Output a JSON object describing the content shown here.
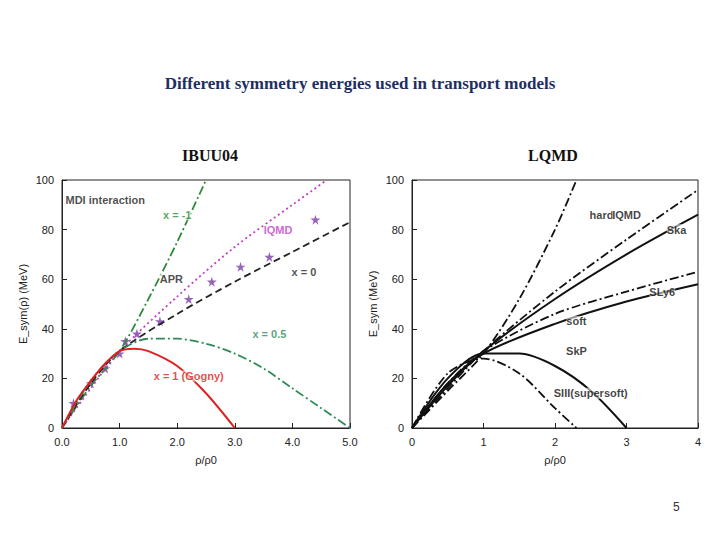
{
  "slide": {
    "title": "Different symmetry energies used in transport models",
    "page": "5"
  },
  "chart_data": [
    {
      "type": "line",
      "title": "IBUU04",
      "x_label": "ρ/ρ0",
      "y_label": "E_sym(ρ) (MeV)",
      "xlim": [
        0,
        5
      ],
      "xticks": [
        {
          "value": 0,
          "label": "0.0"
        },
        {
          "value": 1,
          "label": "1.0"
        },
        {
          "value": 2,
          "label": "2.0"
        },
        {
          "value": 3,
          "label": "3.0"
        },
        {
          "value": 4,
          "label": "4.0"
        },
        {
          "value": 5,
          "label": "5.0"
        }
      ],
      "ylim": [
        0,
        100
      ],
      "yticks": [
        0,
        20,
        40,
        60,
        80,
        100
      ],
      "grid": false,
      "series": [
        {
          "name": "x = -1",
          "color": "#2e8b3a",
          "line_style": "dashdot",
          "x": [
            0,
            0.5,
            1.0,
            1.5,
            2.0,
            2.5
          ],
          "values": [
            0,
            17,
            31,
            52,
            75,
            100
          ]
        },
        {
          "name": "IQMD",
          "color": "#c040c8",
          "line_style": "dotted",
          "x": [
            0,
            0.5,
            1.0,
            2.0,
            3.0,
            4.0,
            4.6
          ],
          "values": [
            0,
            16,
            31,
            53,
            73,
            90,
            100
          ]
        },
        {
          "name": "x = 0",
          "color": "#222222",
          "line_style": "dashed",
          "x": [
            0,
            0.5,
            1.0,
            2.0,
            3.0,
            4.0,
            5.0
          ],
          "values": [
            0,
            18,
            31,
            46,
            59,
            71,
            83
          ]
        },
        {
          "name": "x = 0.5",
          "color": "#2e8b57",
          "line_style": "dashdot",
          "x": [
            0,
            0.5,
            1.0,
            1.5,
            2.0,
            2.5,
            3.0,
            3.5,
            4.0,
            4.5,
            5.0
          ],
          "values": [
            0,
            19,
            31,
            36,
            36,
            34,
            30,
            24,
            16,
            8,
            0
          ]
        },
        {
          "name": "x = 1 (Gogny)",
          "color": "#e02020",
          "line_style": "solid",
          "x": [
            0,
            0.25,
            0.5,
            0.75,
            1.0,
            1.25,
            1.5,
            2.0,
            2.5,
            3.0
          ],
          "values": [
            0,
            11,
            19,
            26,
            31,
            32,
            31,
            25,
            14,
            0
          ]
        },
        {
          "name": "APR",
          "type": "scatter",
          "marker": "star",
          "color": "#7a3fa8",
          "x": [
            0.2,
            0.5,
            0.75,
            1.0,
            1.1,
            1.3,
            1.7,
            2.2,
            2.6,
            3.1,
            3.6,
            4.4
          ],
          "values": [
            10,
            18,
            24,
            30,
            35,
            38,
            43,
            52,
            59,
            65,
            69,
            84
          ]
        }
      ],
      "annotations": [
        {
          "text": "MDI interaction",
          "x": 0.75,
          "y": 92,
          "color": "#222222"
        },
        {
          "text": "x = -1",
          "x": 2.0,
          "y": 86,
          "color": "#2e8b3a"
        },
        {
          "text": "IQMD",
          "x": 3.75,
          "y": 80,
          "color": "#c040c8"
        },
        {
          "text": "APR",
          "x": 1.9,
          "y": 60,
          "color": "#222222"
        },
        {
          "text": "x = 0",
          "x": 4.2,
          "y": 63,
          "color": "#222222"
        },
        {
          "text": "x = 0.5",
          "x": 3.6,
          "y": 38,
          "color": "#2e8b57"
        },
        {
          "text": "x = 1 (Gogny)",
          "x": 2.2,
          "y": 21,
          "color": "#e02020"
        }
      ]
    },
    {
      "type": "line",
      "title": "LQMD",
      "x_label": "ρ/ρ0",
      "y_label": "E_sym (MeV)",
      "xlim": [
        0,
        4
      ],
      "xticks": [
        0,
        1,
        2,
        3,
        4
      ],
      "ylim": [
        0,
        100
      ],
      "yticks": [
        0,
        20,
        40,
        60,
        80,
        100
      ],
      "grid": false,
      "series": [
        {
          "name": "hard",
          "color": "#111111",
          "line_style": "dashdot",
          "x": [
            0,
            0.5,
            1.0,
            1.5,
            2.0,
            2.3
          ],
          "values": [
            0,
            15,
            30,
            52,
            80,
            100
          ]
        },
        {
          "name": "IQMD",
          "color": "#111111",
          "line_style": "dashdot",
          "x": [
            0,
            0.5,
            1.0,
            2.0,
            3.0,
            4.0
          ],
          "values": [
            0,
            16,
            31,
            55,
            76,
            96
          ]
        },
        {
          "name": "Ska",
          "color": "#111111",
          "line_style": "solid",
          "x": [
            0,
            0.5,
            1.0,
            2.0,
            3.0,
            4.0
          ],
          "values": [
            0,
            17,
            31,
            52,
            70,
            86
          ]
        },
        {
          "name": "SLy6",
          "color": "#111111",
          "line_style": "dashdot",
          "x": [
            0,
            0.5,
            1.0,
            2.0,
            3.0,
            4.0
          ],
          "values": [
            0,
            18,
            31,
            46,
            55,
            63
          ]
        },
        {
          "name": "soft",
          "color": "#111111",
          "line_style": "solid",
          "x": [
            0,
            0.5,
            1.0,
            2.0,
            3.0,
            4.0
          ],
          "values": [
            0,
            18,
            30,
            42,
            51,
            58
          ]
        },
        {
          "name": "SkP",
          "color": "#111111",
          "line_style": "solid",
          "x": [
            0,
            0.5,
            1.0,
            1.5,
            2.0,
            2.5,
            3.0
          ],
          "values": [
            0,
            20,
            30,
            30,
            25,
            15,
            0
          ]
        },
        {
          "name": "SIII(supersoft)",
          "color": "#111111",
          "line_style": "dashdot",
          "x": [
            0,
            0.5,
            1.0,
            1.5,
            2.0,
            2.3
          ],
          "values": [
            0,
            22,
            28,
            22,
            8,
            0
          ]
        }
      ],
      "annotations": [
        {
          "text": "hard",
          "x": 2.65,
          "y": 86,
          "color": "#111111"
        },
        {
          "text": "IQMD",
          "x": 3.0,
          "y": 86,
          "color": "#111111"
        },
        {
          "text": "Ska",
          "x": 3.7,
          "y": 80,
          "color": "#111111"
        },
        {
          "text": "SLy6",
          "x": 3.5,
          "y": 55,
          "color": "#111111"
        },
        {
          "text": "soft",
          "x": 2.3,
          "y": 43,
          "color": "#111111"
        },
        {
          "text": "SkP",
          "x": 2.3,
          "y": 31,
          "color": "#111111"
        },
        {
          "text": "SIII(supersoft)",
          "x": 2.5,
          "y": 14,
          "color": "#111111"
        }
      ]
    }
  ]
}
